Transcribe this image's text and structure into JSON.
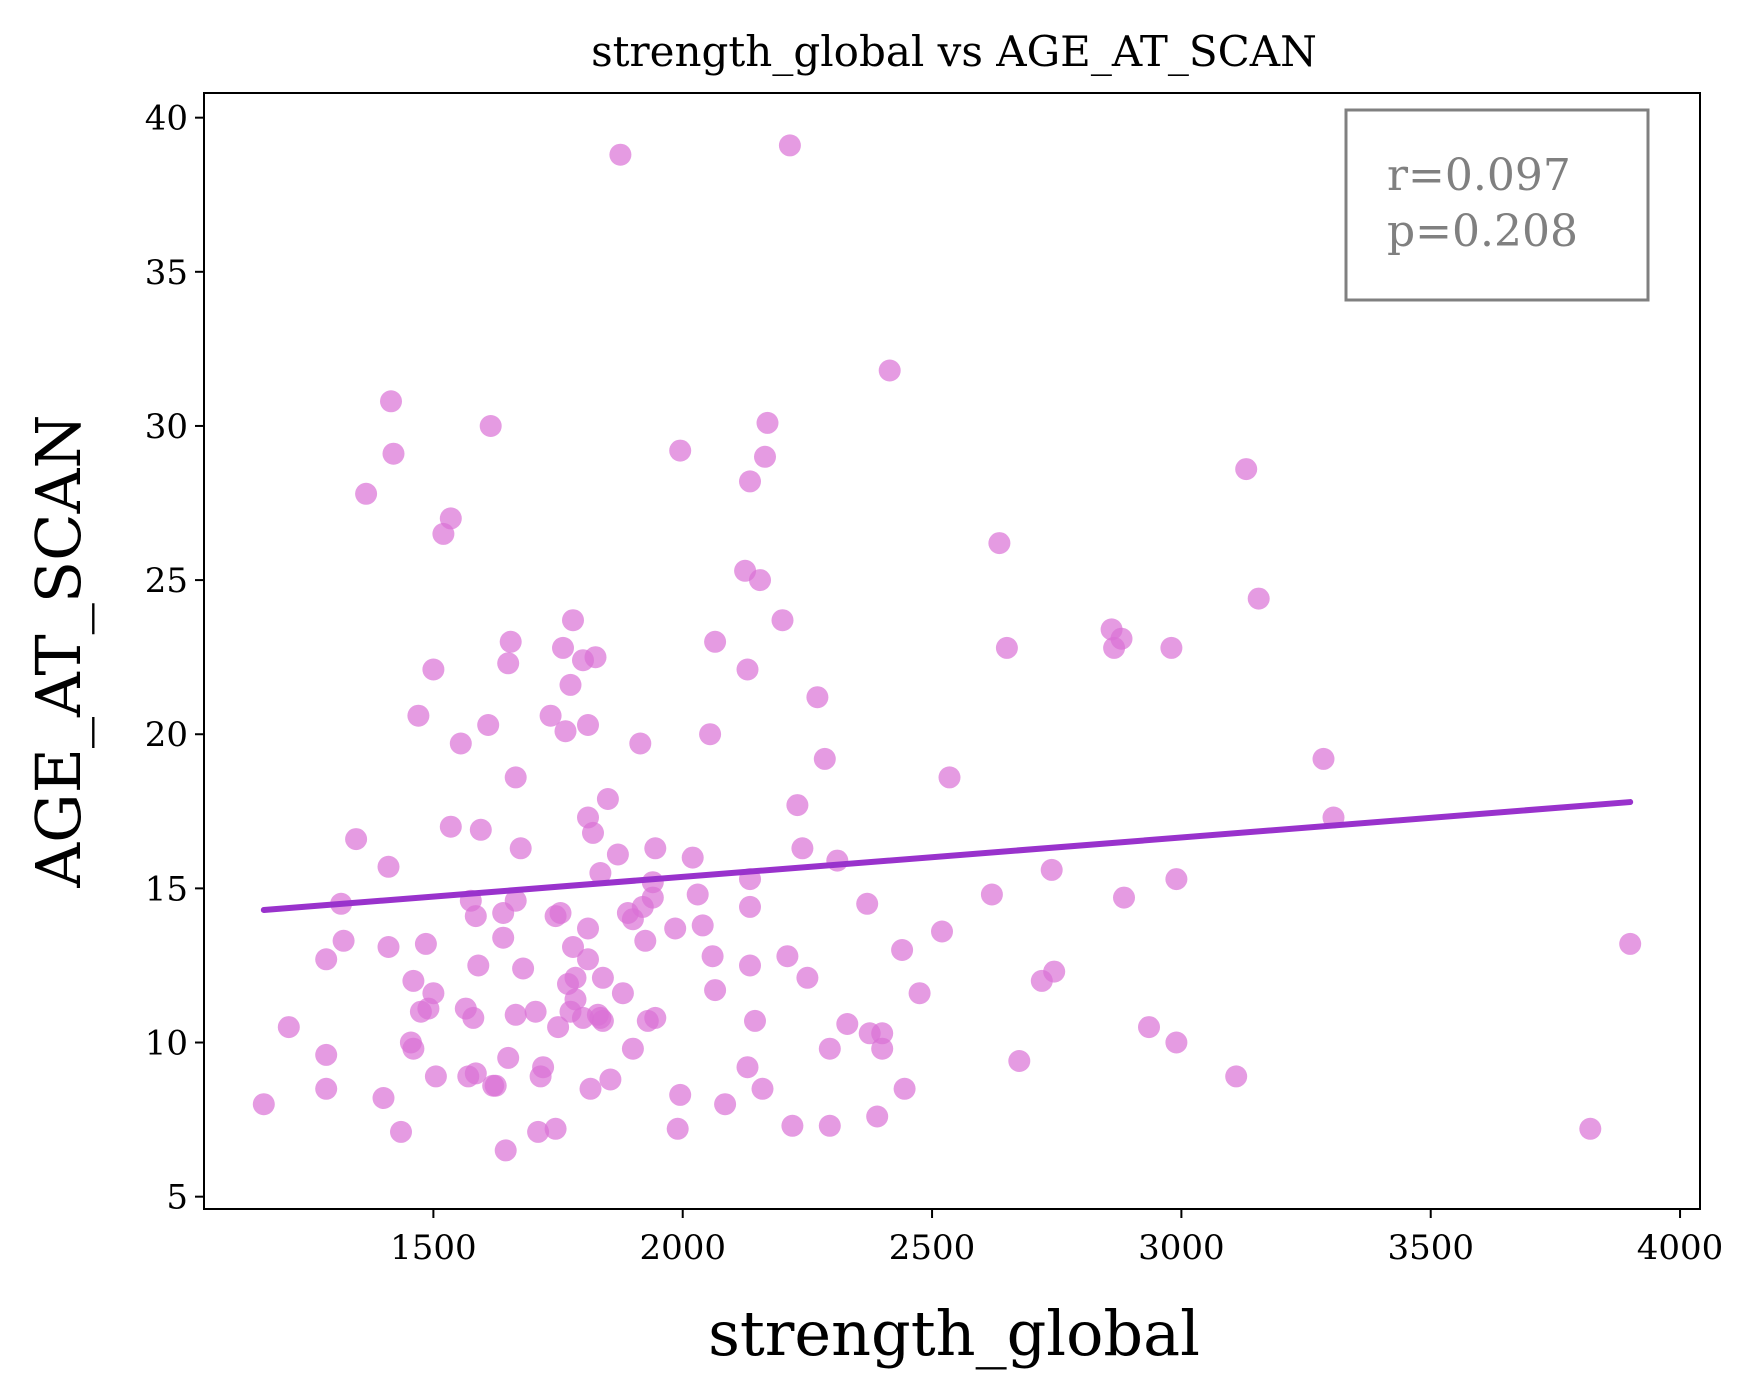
{
  "chart_data": {
    "type": "scatter",
    "title": "strength_global vs AGE_AT_SCAN",
    "xlabel": "strength_global",
    "ylabel": "AGE_AT_SCAN",
    "xlim": [
      1040,
      4040
    ],
    "ylim": [
      4.6,
      40.8
    ],
    "xticks": [
      1500,
      2000,
      2500,
      3000,
      3500,
      4000
    ],
    "yticks": [
      5,
      10,
      15,
      20,
      25,
      30,
      35,
      40
    ],
    "grid": false,
    "point_color": "#da70d6",
    "line_color": "#9932cc",
    "stats": {
      "r_text": "r=0.097",
      "p_text": "p=0.208"
    },
    "annotation_box_color": "#808080",
    "regression": {
      "x": [
        1160,
        3900
      ],
      "y": [
        14.3,
        17.8
      ]
    },
    "points": [
      [
        1160,
        8.0
      ],
      [
        1210,
        10.5
      ],
      [
        1285,
        12.7
      ],
      [
        1285,
        9.6
      ],
      [
        1285,
        8.5
      ],
      [
        1315,
        14.5
      ],
      [
        1320,
        13.3
      ],
      [
        1345,
        16.6
      ],
      [
        1365,
        27.8
      ],
      [
        1400,
        8.2
      ],
      [
        1410,
        13.1
      ],
      [
        1410,
        15.7
      ],
      [
        1415,
        30.8
      ],
      [
        1420,
        29.1
      ],
      [
        1435,
        7.1
      ],
      [
        1455,
        10.0
      ],
      [
        1460,
        9.8
      ],
      [
        1460,
        12.0
      ],
      [
        1470,
        20.6
      ],
      [
        1475,
        11.0
      ],
      [
        1485,
        13.2
      ],
      [
        1490,
        11.1
      ],
      [
        1500,
        22.1
      ],
      [
        1500,
        11.6
      ],
      [
        1505,
        8.9
      ],
      [
        1520,
        26.5
      ],
      [
        1535,
        27.0
      ],
      [
        1535,
        17.0
      ],
      [
        1555,
        19.7
      ],
      [
        1565,
        11.1
      ],
      [
        1570,
        8.9
      ],
      [
        1575,
        14.6
      ],
      [
        1580,
        10.8
      ],
      [
        1585,
        14.1
      ],
      [
        1585,
        9.0
      ],
      [
        1590,
        12.5
      ],
      [
        1595,
        16.9
      ],
      [
        1610,
        20.3
      ],
      [
        1615,
        30.0
      ],
      [
        1620,
        8.6
      ],
      [
        1625,
        8.6
      ],
      [
        1640,
        14.2
      ],
      [
        1640,
        13.4
      ],
      [
        1645,
        6.5
      ],
      [
        1650,
        9.5
      ],
      [
        1650,
        22.3
      ],
      [
        1655,
        23.0
      ],
      [
        1665,
        18.6
      ],
      [
        1665,
        10.9
      ],
      [
        1665,
        14.6
      ],
      [
        1675,
        16.3
      ],
      [
        1680,
        12.4
      ],
      [
        1705,
        11.0
      ],
      [
        1710,
        7.1
      ],
      [
        1715,
        8.9
      ],
      [
        1720,
        9.2
      ],
      [
        1735,
        20.6
      ],
      [
        1745,
        7.2
      ],
      [
        1745,
        14.1
      ],
      [
        1750,
        10.5
      ],
      [
        1755,
        14.2
      ],
      [
        1760,
        22.8
      ],
      [
        1765,
        20.1
      ],
      [
        1770,
        11.9
      ],
      [
        1775,
        21.6
      ],
      [
        1775,
        11.0
      ],
      [
        1780,
        13.1
      ],
      [
        1780,
        23.7
      ],
      [
        1785,
        11.4
      ],
      [
        1785,
        12.1
      ],
      [
        1800,
        10.8
      ],
      [
        1800,
        22.4
      ],
      [
        1810,
        20.3
      ],
      [
        1810,
        17.3
      ],
      [
        1810,
        13.7
      ],
      [
        1810,
        12.7
      ],
      [
        1815,
        8.5
      ],
      [
        1820,
        16.8
      ],
      [
        1825,
        22.5
      ],
      [
        1830,
        10.9
      ],
      [
        1835,
        15.5
      ],
      [
        1835,
        10.8
      ],
      [
        1840,
        10.7
      ],
      [
        1840,
        12.1
      ],
      [
        1850,
        17.9
      ],
      [
        1855,
        8.8
      ],
      [
        1870,
        16.1
      ],
      [
        1875,
        38.8
      ],
      [
        1880,
        11.6
      ],
      [
        1890,
        14.2
      ],
      [
        1900,
        14.0
      ],
      [
        1900,
        9.8
      ],
      [
        1915,
        19.7
      ],
      [
        1920,
        14.4
      ],
      [
        1925,
        13.3
      ],
      [
        1930,
        10.7
      ],
      [
        1940,
        15.2
      ],
      [
        1940,
        14.7
      ],
      [
        1945,
        16.3
      ],
      [
        1945,
        10.8
      ],
      [
        1985,
        13.7
      ],
      [
        1990,
        7.2
      ],
      [
        1995,
        29.2
      ],
      [
        1995,
        8.3
      ],
      [
        2020,
        16.0
      ],
      [
        2030,
        14.8
      ],
      [
        2040,
        13.8
      ],
      [
        2055,
        20.0
      ],
      [
        2060,
        12.8
      ],
      [
        2065,
        23.0
      ],
      [
        2065,
        11.7
      ],
      [
        2085,
        8.0
      ],
      [
        2125,
        25.3
      ],
      [
        2130,
        22.1
      ],
      [
        2130,
        9.2
      ],
      [
        2135,
        28.2
      ],
      [
        2135,
        15.3
      ],
      [
        2135,
        14.4
      ],
      [
        2135,
        12.5
      ],
      [
        2145,
        10.7
      ],
      [
        2155,
        25.0
      ],
      [
        2160,
        8.5
      ],
      [
        2165,
        29.0
      ],
      [
        2170,
        30.1
      ],
      [
        2200,
        23.7
      ],
      [
        2210,
        12.8
      ],
      [
        2215,
        39.1
      ],
      [
        2220,
        7.3
      ],
      [
        2230,
        17.7
      ],
      [
        2240,
        16.3
      ],
      [
        2250,
        12.1
      ],
      [
        2270,
        21.2
      ],
      [
        2285,
        19.2
      ],
      [
        2295,
        9.8
      ],
      [
        2295,
        7.3
      ],
      [
        2310,
        15.9
      ],
      [
        2330,
        10.6
      ],
      [
        2370,
        14.5
      ],
      [
        2375,
        10.3
      ],
      [
        2390,
        7.6
      ],
      [
        2400,
        10.3
      ],
      [
        2400,
        9.8
      ],
      [
        2415,
        31.8
      ],
      [
        2440,
        13.0
      ],
      [
        2445,
        8.5
      ],
      [
        2475,
        11.6
      ],
      [
        2520,
        13.6
      ],
      [
        2535,
        18.6
      ],
      [
        2620,
        14.8
      ],
      [
        2635,
        26.2
      ],
      [
        2650,
        22.8
      ],
      [
        2675,
        9.4
      ],
      [
        2720,
        12.0
      ],
      [
        2740,
        15.6
      ],
      [
        2745,
        12.3
      ],
      [
        2860,
        23.4
      ],
      [
        2865,
        22.8
      ],
      [
        2880,
        23.1
      ],
      [
        2885,
        14.7
      ],
      [
        2935,
        10.5
      ],
      [
        2980,
        22.8
      ],
      [
        2990,
        10.0
      ],
      [
        2990,
        15.3
      ],
      [
        3110,
        8.9
      ],
      [
        3130,
        28.6
      ],
      [
        3155,
        24.4
      ],
      [
        3285,
        19.2
      ],
      [
        3305,
        17.3
      ],
      [
        3820,
        7.2
      ],
      [
        3900,
        13.2
      ]
    ]
  }
}
